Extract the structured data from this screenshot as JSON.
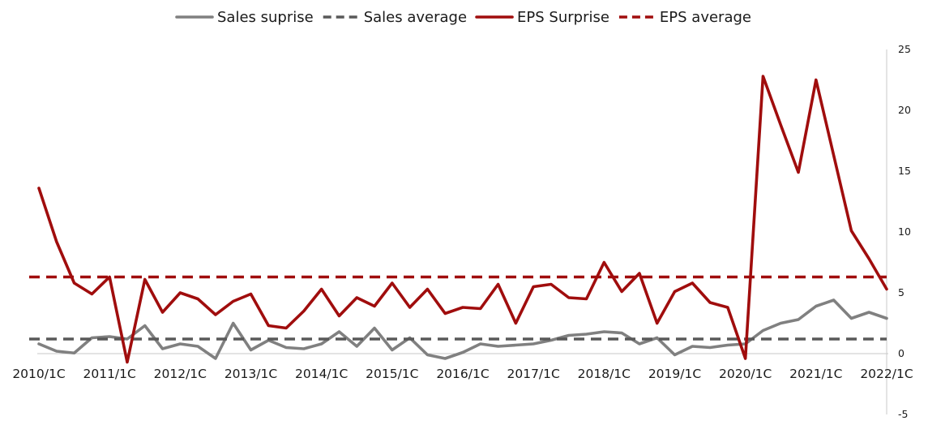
{
  "chart_data": {
    "type": "line",
    "title": "",
    "xlabel": "",
    "ylabel": "",
    "ylim": [
      -5,
      25
    ],
    "yticks": [
      -5,
      0,
      5,
      10,
      15,
      20,
      25
    ],
    "y_axis_side": "right",
    "grid": false,
    "legend": "top-center",
    "x_tick_labels": [
      "2010/1C",
      "2011/1C",
      "2012/1C",
      "2013/1C",
      "2014/1C",
      "2015/1C",
      "2016/1C",
      "2017/1C",
      "2018/1C",
      "2019/1C",
      "2020/1C",
      "2021/1C",
      "2022/1C"
    ],
    "quarters_per_label": 4,
    "series": [
      {
        "name": "Sales suprise",
        "color": "#808080",
        "style": "solid",
        "values": [
          0.8,
          0.2,
          0.05,
          1.3,
          1.4,
          1.2,
          2.3,
          0.4,
          0.8,
          0.6,
          -0.4,
          2.5,
          0.3,
          1.1,
          0.5,
          0.4,
          0.8,
          1.8,
          0.6,
          2.1,
          0.3,
          1.3,
          -0.1,
          -0.4,
          0.1,
          0.8,
          0.6,
          0.7,
          0.8,
          1.1,
          1.5,
          1.6,
          1.8,
          1.7,
          0.8,
          1.3,
          -0.1,
          0.6,
          0.5,
          0.7,
          0.8,
          1.9,
          2.5,
          2.8,
          3.9,
          4.4,
          2.9,
          3.4,
          2.9
        ]
      },
      {
        "name": "Sales average",
        "color": "#595959",
        "style": "dashed",
        "constant": 1.2
      },
      {
        "name": "EPS Surprise",
        "color": "#a00d0d",
        "style": "solid",
        "values": [
          13.6,
          9.2,
          5.8,
          4.9,
          6.3,
          -0.7,
          6.1,
          3.4,
          5.0,
          4.5,
          3.2,
          4.3,
          4.9,
          2.3,
          2.1,
          3.5,
          5.3,
          3.1,
          4.6,
          3.9,
          5.8,
          3.8,
          5.3,
          3.3,
          3.8,
          3.7,
          5.7,
          2.5,
          5.5,
          5.7,
          4.6,
          4.5,
          7.5,
          5.1,
          6.6,
          2.5,
          5.1,
          5.8,
          4.2,
          3.8,
          -0.4,
          22.8,
          18.8,
          14.9,
          22.5,
          16.3,
          10.1,
          7.8,
          5.3
        ]
      },
      {
        "name": "EPS average",
        "color": "#a00d0d",
        "style": "dashed",
        "constant": 6.3
      }
    ]
  }
}
